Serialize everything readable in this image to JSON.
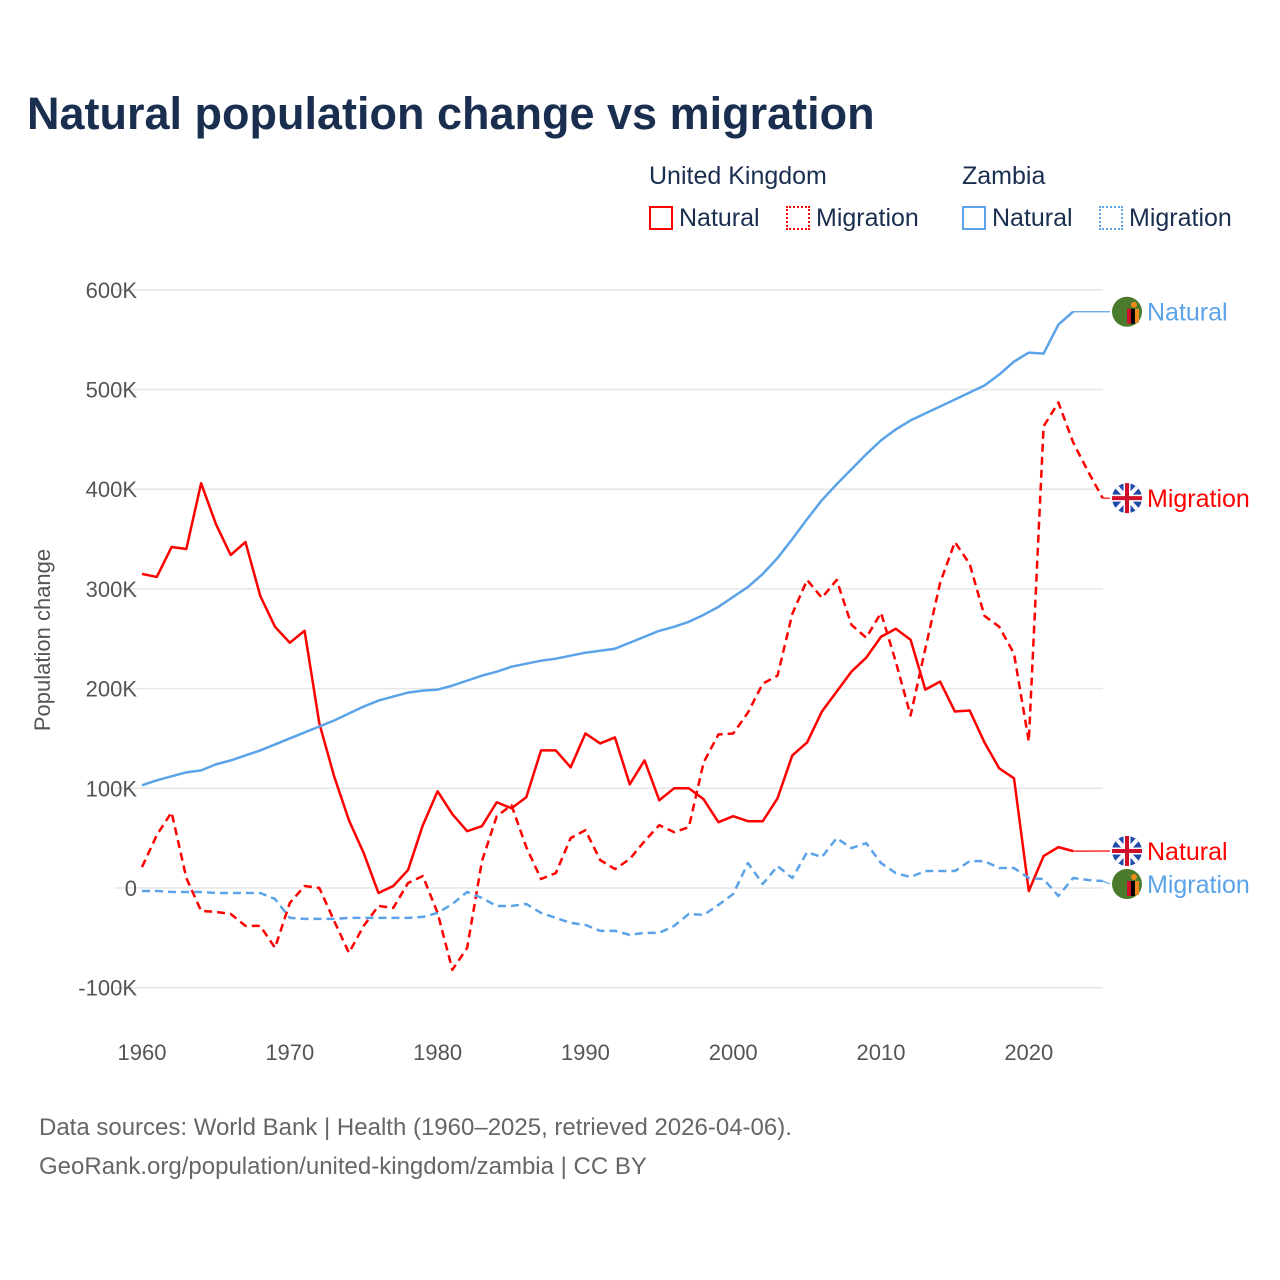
{
  "title": "Natural population change vs migration",
  "legend": {
    "groups": [
      {
        "name": "United Kingdom",
        "items": [
          "Natural",
          "Migration"
        ]
      },
      {
        "name": "Zambia",
        "items": [
          "Natural",
          "Migration"
        ]
      }
    ]
  },
  "footer": {
    "line1": "Data sources: World Bank | Health (1960–2025, retrieved 2026-04-06).",
    "line2": "GeoRank.org/population/united-kingdom/zambia | CC BY"
  },
  "colors": {
    "uk": "#ff0000",
    "zambia": "#5ba3e8"
  },
  "chart_data": {
    "type": "line",
    "title": "Natural population change vs migration",
    "xlabel": "",
    "ylabel": "Population change",
    "xlim": [
      1960,
      2025
    ],
    "ylim": [
      -100000,
      600000
    ],
    "x_ticks": [
      "1960",
      "1970",
      "1980",
      "1990",
      "2000",
      "2010",
      "2020"
    ],
    "y_ticks": [
      "-100K",
      "0",
      "100K",
      "200K",
      "300K",
      "400K",
      "500K",
      "600K"
    ],
    "y_tick_values": [
      -100,
      0,
      100,
      200,
      300,
      400,
      500,
      600
    ],
    "units": "thousands",
    "start_year": 1960,
    "series": [
      {
        "name": "United Kingdom Natural",
        "country": "uk",
        "dash": false,
        "end_label": "Natural",
        "values": [
          315,
          312,
          342,
          340,
          406,
          365,
          334,
          347,
          293,
          262,
          246,
          258,
          165,
          112,
          68,
          35,
          -5,
          2,
          18,
          63,
          97,
          74,
          57,
          62,
          86,
          80,
          91,
          138,
          138,
          121,
          155,
          145,
          151,
          104,
          128,
          88,
          100,
          100,
          89,
          66,
          72,
          67,
          67,
          90,
          133,
          146,
          177,
          197,
          217,
          231,
          252,
          260,
          249,
          199,
          207,
          177,
          178,
          146,
          120,
          110,
          -3,
          32,
          41,
          37
        ]
      },
      {
        "name": "United Kingdom Migration",
        "country": "uk",
        "dash": true,
        "end_label": "Migration",
        "values": [
          21,
          53,
          76,
          10,
          -23,
          -24,
          -26,
          -38,
          -38,
          -60,
          -15,
          2,
          0,
          -33,
          -65,
          -38,
          -18,
          -20,
          5,
          12,
          -25,
          -82,
          -60,
          27,
          72,
          83,
          41,
          9,
          15,
          50,
          58,
          28,
          19,
          29,
          47,
          63,
          56,
          61,
          126,
          154,
          155,
          176,
          205,
          213,
          275,
          309,
          291,
          309,
          264,
          251,
          276,
          227,
          173,
          240,
          306,
          347,
          325,
          273,
          262,
          235,
          147,
          463,
          487,
          447,
          418,
          391
        ]
      },
      {
        "name": "Zambia Natural",
        "country": "zambia",
        "dash": false,
        "end_label": "Natural",
        "values": [
          103,
          108,
          112,
          116,
          118,
          124,
          128,
          133,
          138,
          144,
          150,
          156,
          162,
          168,
          175,
          182,
          188,
          192,
          196,
          198,
          199,
          203,
          208,
          213,
          217,
          222,
          225,
          228,
          230,
          233,
          236,
          238,
          240,
          246,
          252,
          258,
          262,
          267,
          274,
          282,
          292,
          302,
          315,
          331,
          350,
          370,
          389,
          405,
          420,
          435,
          449,
          460,
          469,
          476,
          483,
          490,
          497,
          504,
          515,
          528,
          537,
          536,
          565,
          578
        ]
      },
      {
        "name": "Zambia Migration",
        "country": "zambia",
        "dash": true,
        "end_label": "Migration",
        "values": [
          -3,
          -3,
          -4,
          -4,
          -4,
          -5,
          -5,
          -5,
          -5,
          -11,
          -30,
          -31,
          -31,
          -31,
          -30,
          -30,
          -30,
          -30,
          -30,
          -29,
          -25,
          -16,
          -4,
          -10,
          -18,
          -18,
          -16,
          -25,
          -30,
          -35,
          -37,
          -43,
          -43,
          -47,
          -45,
          -45,
          -38,
          -26,
          -27,
          -17,
          -6,
          25,
          4,
          22,
          10,
          36,
          31,
          50,
          40,
          45,
          25,
          15,
          11,
          17,
          17,
          17,
          27,
          27,
          20,
          20,
          10,
          9,
          -8,
          10,
          8,
          7
        ]
      }
    ]
  }
}
